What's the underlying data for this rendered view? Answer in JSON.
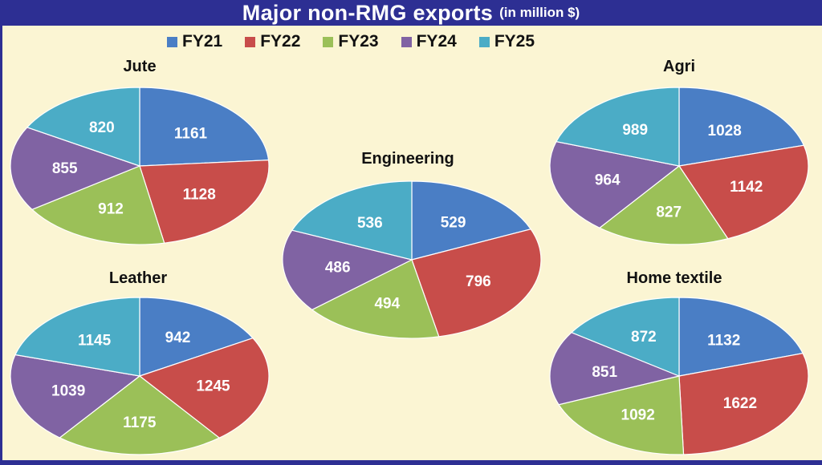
{
  "header": {
    "title": "Major non-RMG exports",
    "subtitle": "(in million $)"
  },
  "legend": [
    {
      "label": "FY21",
      "color": "#4a7ec5"
    },
    {
      "label": "FY22",
      "color": "#c84d4a"
    },
    {
      "label": "FY23",
      "color": "#9bc058"
    },
    {
      "label": "FY24",
      "color": "#8063a3"
    },
    {
      "label": "FY25",
      "color": "#4bacc6"
    }
  ],
  "chart_data": [
    {
      "type": "pie",
      "title": "Jute",
      "categories": [
        "FY21",
        "FY22",
        "FY23",
        "FY24",
        "FY25"
      ],
      "values": [
        1161,
        1128,
        912,
        855,
        820
      ]
    },
    {
      "type": "pie",
      "title": "Agri",
      "categories": [
        "FY21",
        "FY22",
        "FY23",
        "FY24",
        "FY25"
      ],
      "values": [
        1028,
        1142,
        827,
        964,
        989
      ]
    },
    {
      "type": "pie",
      "title": "Engineering",
      "categories": [
        "FY21",
        "FY22",
        "FY23",
        "FY24",
        "FY25"
      ],
      "values": [
        529,
        796,
        494,
        486,
        536
      ]
    },
    {
      "type": "pie",
      "title": "Leather",
      "categories": [
        "FY21",
        "FY22",
        "FY23",
        "FY24",
        "FY25"
      ],
      "values": [
        942,
        1245,
        1175,
        1039,
        1145
      ]
    },
    {
      "type": "pie",
      "title": "Home textile",
      "categories": [
        "FY21",
        "FY22",
        "FY23",
        "FY24",
        "FY25"
      ],
      "values": [
        1132,
        1622,
        1092,
        851,
        872
      ]
    }
  ]
}
